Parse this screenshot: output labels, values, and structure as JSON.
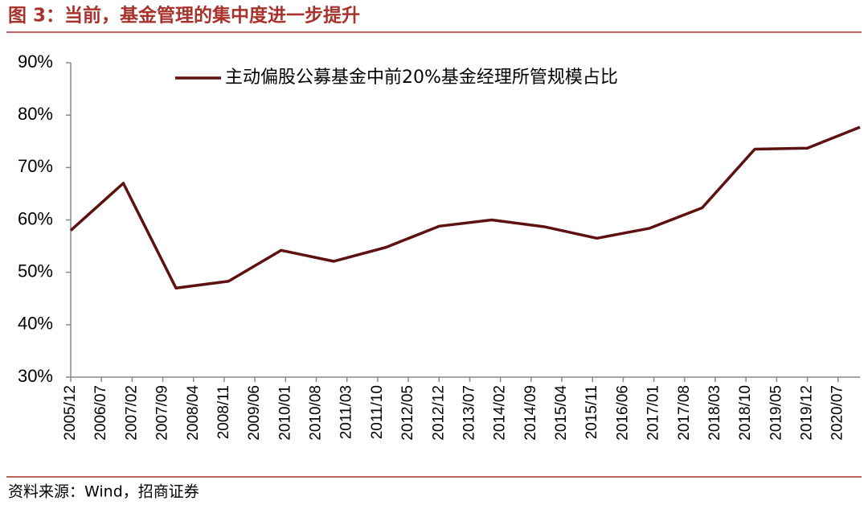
{
  "chart_data": {
    "type": "line",
    "title": "图 3：当前，基金管理的集中度进一步提升",
    "source": "资料来源：Wind，招商证券",
    "xticks": [
      "2005/12",
      "2006/07",
      "2007/02",
      "2007/09",
      "2008/04",
      "2008/11",
      "2009/06",
      "2010/01",
      "2010/08",
      "2011/03",
      "2011/10",
      "2012/05",
      "2012/12",
      "2013/07",
      "2014/02",
      "2014/09",
      "2015/04",
      "2015/11",
      "2016/06",
      "2017/01",
      "2017/08",
      "2018/03",
      "2018/10",
      "2019/05",
      "2019/12",
      "2020/07"
    ],
    "xlim": [
      "2005/12",
      "2020/12"
    ],
    "x": [
      "2005/12",
      "2006/12",
      "2007/12",
      "2008/12",
      "2009/12",
      "2010/12",
      "2011/12",
      "2012/12",
      "2013/12",
      "2014/12",
      "2015/12",
      "2016/12",
      "2017/12",
      "2018/12",
      "2019/12",
      "2020/12"
    ],
    "series": [
      {
        "name": "主动偏股公募基金中前20%基金经理所管规模占比",
        "color": "#5e1111",
        "values": [
          58.0,
          67.0,
          47.0,
          48.3,
          54.2,
          52.1,
          54.8,
          58.8,
          60.0,
          58.7,
          56.5,
          58.4,
          62.3,
          73.5,
          73.7,
          77.7
        ]
      }
    ],
    "ylim": [
      30,
      90
    ],
    "yticks": [
      {
        "value": 30,
        "label": "30%"
      },
      {
        "value": 40,
        "label": "40%"
      },
      {
        "value": 50,
        "label": "50%"
      },
      {
        "value": 60,
        "label": "60%"
      },
      {
        "value": 70,
        "label": "70%"
      },
      {
        "value": 80,
        "label": "80%"
      },
      {
        "value": 90,
        "label": "90%"
      }
    ],
    "grid": false
  }
}
